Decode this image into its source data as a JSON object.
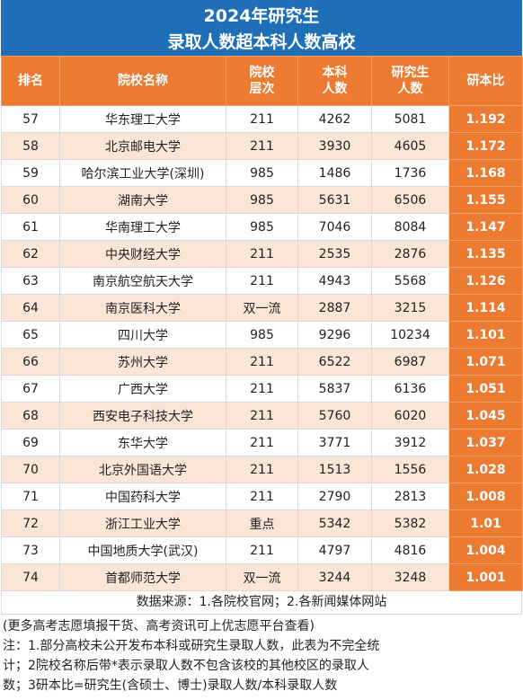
{
  "title": {
    "line1": "2024年研究生",
    "line2": "录取人数超本科人数高校"
  },
  "columns": {
    "rank": "排名",
    "name": "院校名称",
    "level": "院校\n层次",
    "undergrad": "本科\n人数",
    "grad": "研究生\n人数",
    "ratio": "研本比"
  },
  "rows": [
    {
      "rank": "57",
      "name": "华东理工大学",
      "level": "211",
      "undergrad": "4262",
      "grad": "5081",
      "ratio": "1.192"
    },
    {
      "rank": "58",
      "name": "北京邮电大学",
      "level": "211",
      "undergrad": "3930",
      "grad": "4605",
      "ratio": "1.172"
    },
    {
      "rank": "59",
      "name": "哈尔滨工业大学(深圳)",
      "level": "985",
      "undergrad": "1486",
      "grad": "1736",
      "ratio": "1.168"
    },
    {
      "rank": "60",
      "name": "湖南大学",
      "level": "985",
      "undergrad": "5631",
      "grad": "6506",
      "ratio": "1.155"
    },
    {
      "rank": "61",
      "name": "华南理工大学",
      "level": "985",
      "undergrad": "7046",
      "grad": "8084",
      "ratio": "1.147"
    },
    {
      "rank": "62",
      "name": "中央财经大学",
      "level": "211",
      "undergrad": "2535",
      "grad": "2876",
      "ratio": "1.135"
    },
    {
      "rank": "63",
      "name": "南京航空航天大学",
      "level": "211",
      "undergrad": "4943",
      "grad": "5568",
      "ratio": "1.126"
    },
    {
      "rank": "64",
      "name": "南京医科大学",
      "level": "双一流",
      "undergrad": "2887",
      "grad": "3215",
      "ratio": "1.114"
    },
    {
      "rank": "65",
      "name": "四川大学",
      "level": "985",
      "undergrad": "9296",
      "grad": "10234",
      "ratio": "1.101"
    },
    {
      "rank": "66",
      "name": "苏州大学",
      "level": "211",
      "undergrad": "6522",
      "grad": "6987",
      "ratio": "1.071"
    },
    {
      "rank": "67",
      "name": "广西大学",
      "level": "211",
      "undergrad": "5837",
      "grad": "6136",
      "ratio": "1.051"
    },
    {
      "rank": "68",
      "name": "西安电子科技大学",
      "level": "211",
      "undergrad": "5760",
      "grad": "6020",
      "ratio": "1.045"
    },
    {
      "rank": "69",
      "name": "东华大学",
      "level": "211",
      "undergrad": "3771",
      "grad": "3912",
      "ratio": "1.037"
    },
    {
      "rank": "70",
      "name": "北京外国语大学",
      "level": "211",
      "undergrad": "1513",
      "grad": "1556",
      "ratio": "1.028"
    },
    {
      "rank": "71",
      "name": "中国药科大学",
      "level": "211",
      "undergrad": "2790",
      "grad": "2813",
      "ratio": "1.008"
    },
    {
      "rank": "72",
      "name": "浙江工业大学",
      "level": "重点",
      "undergrad": "5342",
      "grad": "5382",
      "ratio": "1.01"
    },
    {
      "rank": "73",
      "name": "中国地质大学(武汉)",
      "level": "211",
      "undergrad": "4797",
      "grad": "4816",
      "ratio": "1.004"
    },
    {
      "rank": "74",
      "name": "首都师范大学",
      "level": "双一流",
      "undergrad": "3244",
      "grad": "3248",
      "ratio": "1.001"
    }
  ],
  "source": "数据来源：1.各院校官网；2.各新闻媒体网站",
  "notes": [
    "(更多高考志愿填报干货、高考资讯可上优志愿平台查看)",
    "注：1.部分高校未公开发布本科或研究生录取人数，此表为不完全统",
    "计；2院校名称后带*表示录取人数不包含该校的其他校区的录取人",
    "数；3研本比=研究生(含硕士、博士)录取人数/本科录取人数"
  ],
  "colors": {
    "title_bg": "#1f6fb8",
    "header_bg": "#ec7a30",
    "alt_row_bg": "#fbe5d6"
  }
}
